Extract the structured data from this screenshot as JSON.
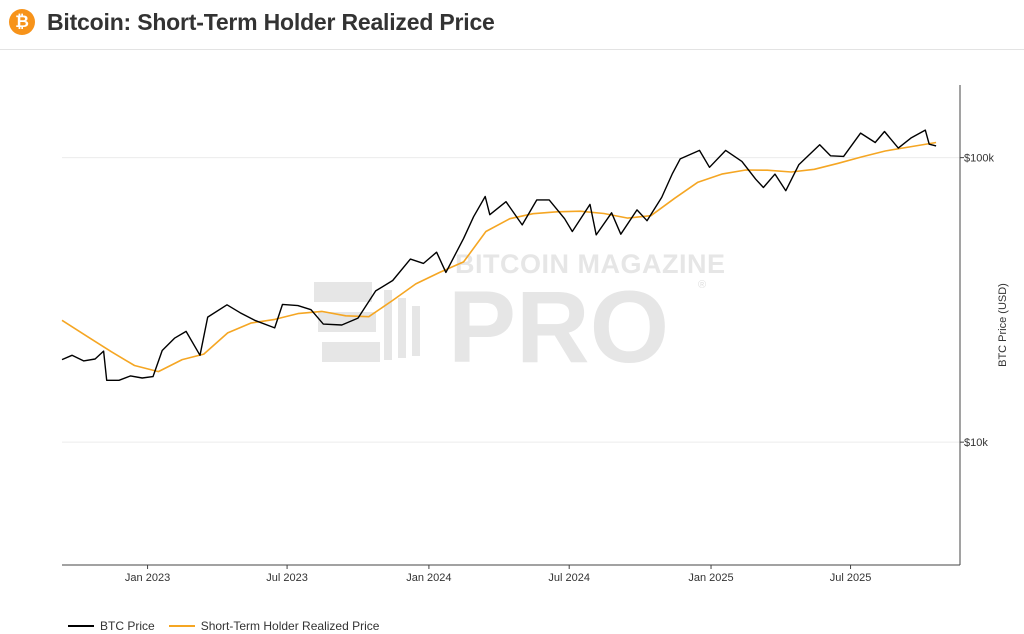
{
  "header": {
    "title": "Bitcoin: Short-Term Holder Realized Price",
    "logo_glyph": "₿",
    "logo_color": "#f7931a"
  },
  "watermark": {
    "line1": "BITCOIN MAGAZINE",
    "line2": "PRO",
    "registered": "®"
  },
  "chart_data": {
    "type": "line",
    "title": "Bitcoin: Short-Term Holder Realized Price",
    "xlabel": "",
    "ylabel": "BTC Price (USD)",
    "y_scale": "log",
    "ylim": [
      3700,
      180000
    ],
    "xlim": [
      "2022-09-12",
      "2025-11-20"
    ],
    "grid": true,
    "legend_position": "bottom-left",
    "x_ticks": [
      {
        "date": "2023-01-01",
        "label": "Jan 2023"
      },
      {
        "date": "2023-07-01",
        "label": "Jul 2023"
      },
      {
        "date": "2024-01-01",
        "label": "Jan 2024"
      },
      {
        "date": "2024-07-01",
        "label": "Jul 2024"
      },
      {
        "date": "2025-01-01",
        "label": "Jan 2025"
      },
      {
        "date": "2025-07-01",
        "label": "Jul 2025"
      }
    ],
    "y_ticks": [
      {
        "value": 10000,
        "label": "$10k"
      },
      {
        "value": 100000,
        "label": "$100k"
      }
    ],
    "series": [
      {
        "name": "BTC Price",
        "color": "#000000",
        "points": [
          [
            "2022-09-12",
            19500
          ],
          [
            "2022-09-25",
            20200
          ],
          [
            "2022-10-10",
            19300
          ],
          [
            "2022-10-25",
            19600
          ],
          [
            "2022-11-05",
            20900
          ],
          [
            "2022-11-09",
            16500
          ],
          [
            "2022-11-25",
            16500
          ],
          [
            "2022-12-10",
            17100
          ],
          [
            "2022-12-25",
            16800
          ],
          [
            "2023-01-08",
            17000
          ],
          [
            "2023-01-20",
            21000
          ],
          [
            "2023-02-05",
            23200
          ],
          [
            "2023-02-20",
            24500
          ],
          [
            "2023-03-10",
            20200
          ],
          [
            "2023-03-20",
            27500
          ],
          [
            "2023-04-14",
            30400
          ],
          [
            "2023-05-01",
            28500
          ],
          [
            "2023-05-20",
            26800
          ],
          [
            "2023-06-15",
            25200
          ],
          [
            "2023-06-25",
            30500
          ],
          [
            "2023-07-15",
            30200
          ],
          [
            "2023-08-01",
            29200
          ],
          [
            "2023-08-17",
            26000
          ],
          [
            "2023-09-10",
            25800
          ],
          [
            "2023-10-01",
            27300
          ],
          [
            "2023-10-24",
            34000
          ],
          [
            "2023-11-15",
            37000
          ],
          [
            "2023-12-08",
            44000
          ],
          [
            "2023-12-25",
            42500
          ],
          [
            "2024-01-11",
            46500
          ],
          [
            "2024-01-23",
            39500
          ],
          [
            "2024-02-15",
            52000
          ],
          [
            "2024-02-28",
            62000
          ],
          [
            "2024-03-14",
            73000
          ],
          [
            "2024-03-20",
            63000
          ],
          [
            "2024-04-10",
            70000
          ],
          [
            "2024-05-01",
            58000
          ],
          [
            "2024-05-20",
            71000
          ],
          [
            "2024-06-05",
            71000
          ],
          [
            "2024-06-25",
            61000
          ],
          [
            "2024-07-05",
            55000
          ],
          [
            "2024-07-28",
            68500
          ],
          [
            "2024-08-05",
            53500
          ],
          [
            "2024-08-25",
            64000
          ],
          [
            "2024-09-06",
            53800
          ],
          [
            "2024-09-27",
            65500
          ],
          [
            "2024-10-10",
            60000
          ],
          [
            "2024-10-29",
            72500
          ],
          [
            "2024-11-12",
            88000
          ],
          [
            "2024-11-22",
            99000
          ],
          [
            "2024-12-17",
            106000
          ],
          [
            "2024-12-30",
            92500
          ],
          [
            "2025-01-20",
            106000
          ],
          [
            "2025-02-10",
            97000
          ],
          [
            "2025-02-28",
            84000
          ],
          [
            "2025-03-10",
            78500
          ],
          [
            "2025-03-25",
            87500
          ],
          [
            "2025-04-08",
            76500
          ],
          [
            "2025-04-25",
            94500
          ],
          [
            "2025-05-22",
            111000
          ],
          [
            "2025-06-05",
            101500
          ],
          [
            "2025-06-22",
            101000
          ],
          [
            "2025-07-14",
            122000
          ],
          [
            "2025-08-02",
            113000
          ],
          [
            "2025-08-14",
            123500
          ],
          [
            "2025-09-01",
            108000
          ],
          [
            "2025-09-18",
            117500
          ],
          [
            "2025-10-06",
            125000
          ],
          [
            "2025-10-11",
            111500
          ],
          [
            "2025-10-20",
            110000
          ]
        ]
      },
      {
        "name": "Short-Term Holder Realized Price",
        "color": "#f5a623",
        "points": [
          [
            "2022-09-12",
            26800
          ],
          [
            "2022-10-15",
            23500
          ],
          [
            "2022-11-15",
            20800
          ],
          [
            "2022-12-15",
            18600
          ],
          [
            "2023-01-15",
            17700
          ],
          [
            "2023-02-15",
            19500
          ],
          [
            "2023-03-15",
            20400
          ],
          [
            "2023-04-15",
            24200
          ],
          [
            "2023-05-15",
            26200
          ],
          [
            "2023-06-15",
            27000
          ],
          [
            "2023-07-15",
            28300
          ],
          [
            "2023-08-15",
            28800
          ],
          [
            "2023-09-15",
            27800
          ],
          [
            "2023-10-15",
            27600
          ],
          [
            "2023-11-15",
            31500
          ],
          [
            "2023-12-15",
            36000
          ],
          [
            "2024-01-15",
            39500
          ],
          [
            "2024-02-15",
            43000
          ],
          [
            "2024-03-15",
            55000
          ],
          [
            "2024-04-15",
            61000
          ],
          [
            "2024-05-15",
            63500
          ],
          [
            "2024-06-15",
            64500
          ],
          [
            "2024-07-15",
            64800
          ],
          [
            "2024-08-15",
            63600
          ],
          [
            "2024-09-15",
            61300
          ],
          [
            "2024-10-15",
            62500
          ],
          [
            "2024-11-15",
            72000
          ],
          [
            "2024-12-15",
            82000
          ],
          [
            "2025-01-15",
            87500
          ],
          [
            "2025-02-15",
            90500
          ],
          [
            "2025-03-15",
            90300
          ],
          [
            "2025-04-15",
            89000
          ],
          [
            "2025-05-15",
            91000
          ],
          [
            "2025-06-15",
            95500
          ],
          [
            "2025-07-15",
            100500
          ],
          [
            "2025-08-15",
            105500
          ],
          [
            "2025-09-15",
            109000
          ],
          [
            "2025-10-20",
            113000
          ]
        ]
      }
    ]
  }
}
